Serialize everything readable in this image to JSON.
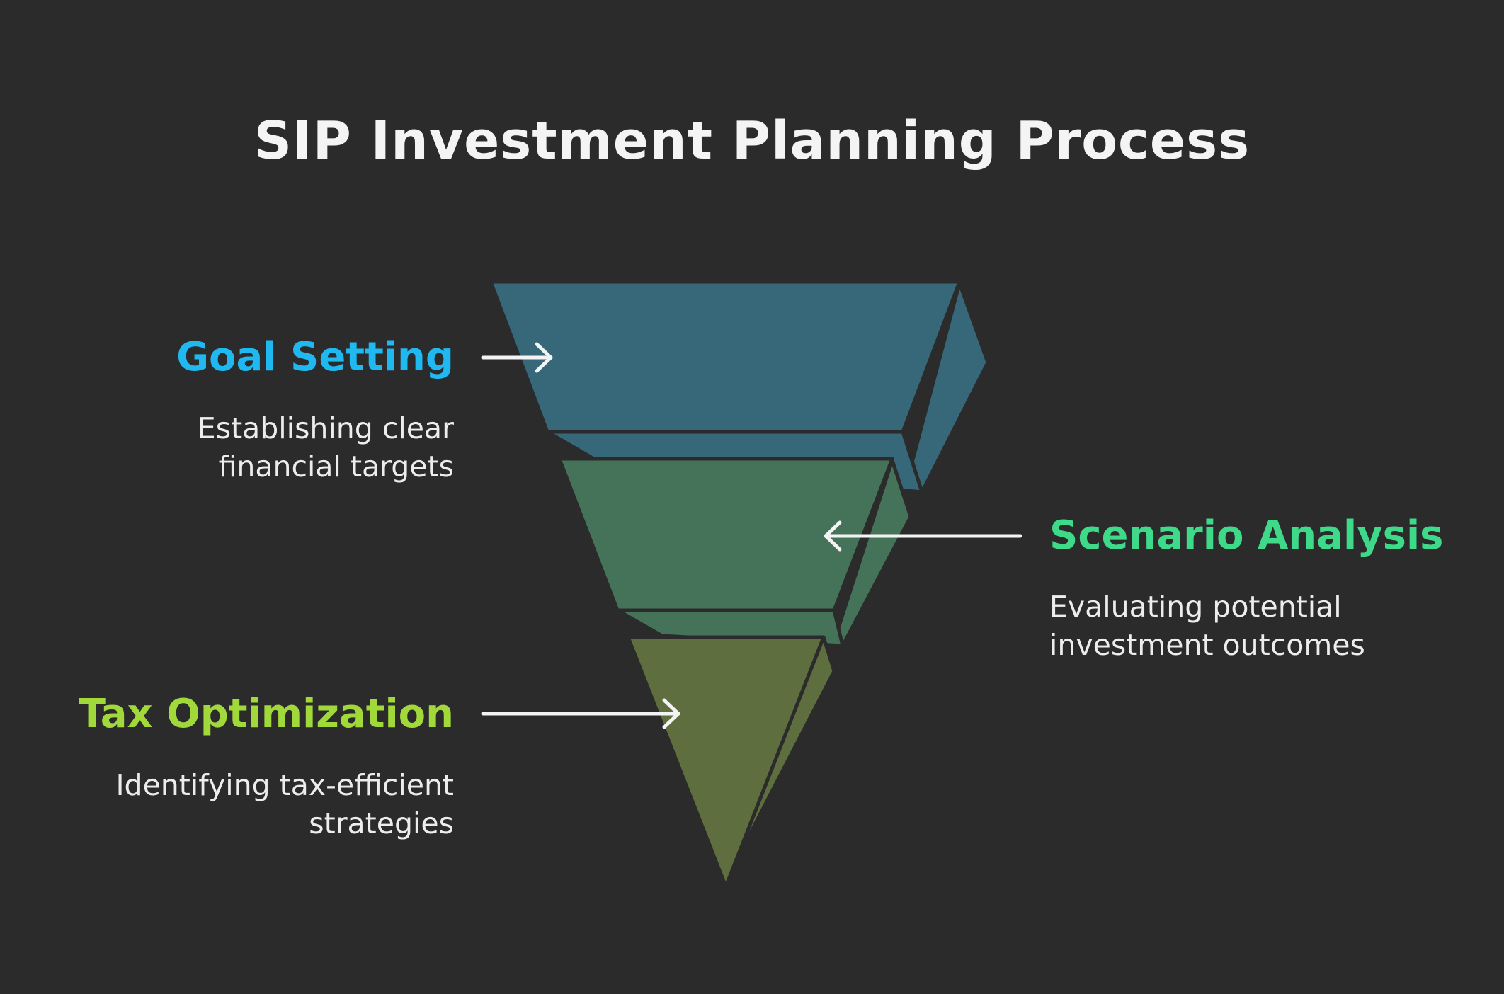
{
  "title": "SIP Investment Planning Process",
  "stages": [
    {
      "label": "Goal Setting",
      "description_lines": [
        "Establishing clear",
        "financial targets"
      ],
      "color": "#1fb8f0",
      "fill": "#36687a"
    },
    {
      "label": "Scenario Analysis",
      "description_lines": [
        "Evaluating potential",
        "investment outcomes"
      ],
      "color": "#3fd98a",
      "fill": "#45735a"
    },
    {
      "label": "Tax Optimization",
      "description_lines": [
        "Identifying tax-efficient",
        "strategies"
      ],
      "color": "#a2d93a",
      "fill": "#5f6e3e"
    }
  ],
  "colors": {
    "background": "#2b2b2b",
    "arrow": "#f4f4f4",
    "outline": "#2b2b2b"
  }
}
